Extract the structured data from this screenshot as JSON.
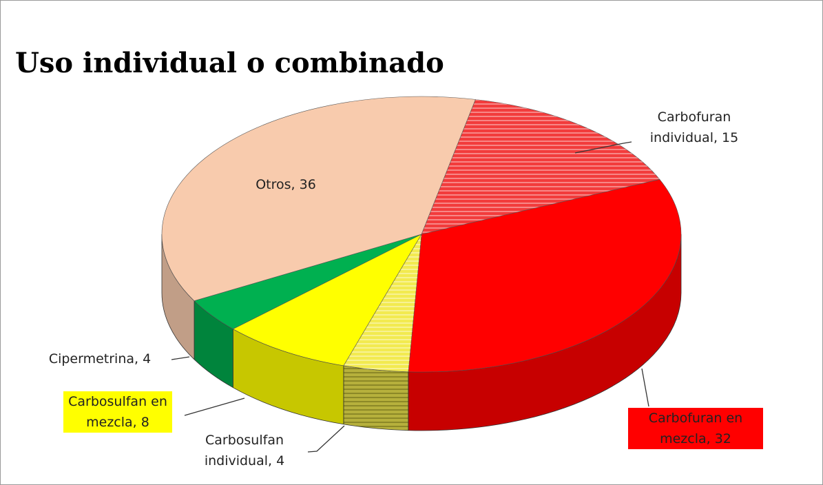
{
  "chart_data": {
    "type": "pie3d",
    "title": "Uso individual o combinado",
    "values": [
      15,
      32,
      4,
      8,
      4,
      36
    ],
    "value_labels": [
      "Carbofuran individual, 15",
      "Carbofuran en mezcla, 32",
      "Carbosulfan individual, 4",
      "Carbosulfan en mezcla, 8",
      "Cipermetrina, 4",
      "Otros, 36"
    ],
    "colors": [
      "#f23c3c",
      "#ff0000",
      "#f2ea50",
      "#ffff00",
      "#00b050",
      "#f8cbad"
    ],
    "hatched": [
      true,
      false,
      true,
      false,
      false,
      false
    ]
  }
}
